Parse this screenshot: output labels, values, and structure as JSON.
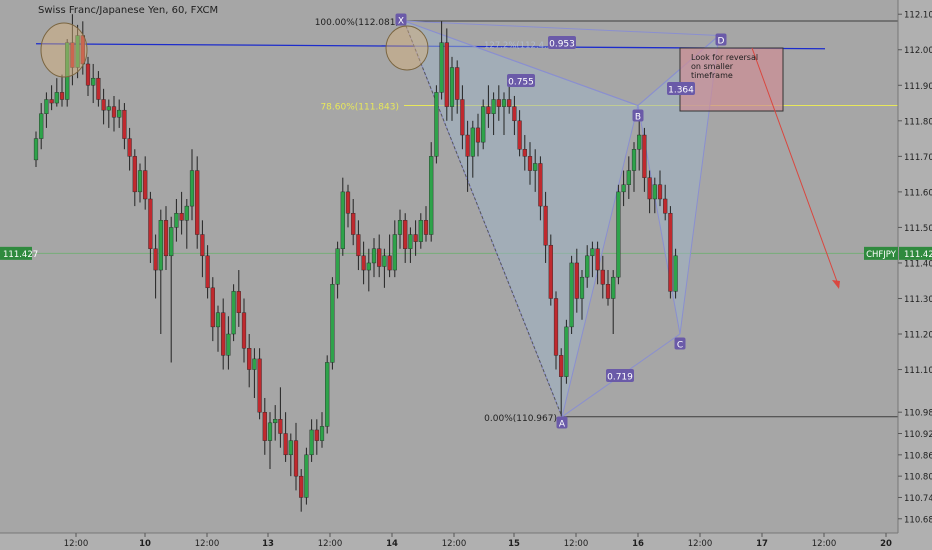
{
  "chart_data": {
    "type": "candlestick",
    "title": "Swiss Franc/Japanese Yen, 60, FXCM",
    "symbol": "CHFJPY",
    "last_price": "111.427",
    "ylim": [
      110.64,
      112.14
    ],
    "y_ticks": [
      "112.100",
      "112.000",
      "111.900",
      "111.800",
      "111.700",
      "111.600",
      "111.500",
      "111.400",
      "111.300",
      "111.200",
      "111.100",
      "110.980",
      "110.920",
      "110.860",
      "110.800",
      "110.740",
      "110.680"
    ],
    "y_tick_values": [
      112.1,
      112.0,
      111.9,
      111.8,
      111.7,
      111.6,
      111.5,
      111.4,
      111.3,
      111.2,
      111.1,
      110.98,
      110.92,
      110.86,
      110.8,
      110.74,
      110.68
    ],
    "x_ticks": [
      "12:00",
      "10",
      "12:00",
      "13",
      "12:00",
      "14",
      "12:00",
      "15",
      "12:00",
      "16",
      "12:00",
      "17",
      "12:00",
      "20"
    ],
    "horizontal_lines": [
      {
        "label": "100.00%(112.081)",
        "value": 112.081,
        "color": "#3d3d3d"
      },
      {
        "label": "78.60%(111.843)",
        "value": 111.843,
        "color": "#e8e85a"
      },
      {
        "label": "0.00%(110.967)",
        "value": 110.967,
        "color": "#3d3d3d"
      },
      {
        "label": "",
        "value": 112.014,
        "color": "#1c2ccc"
      }
    ],
    "pattern": {
      "points": [
        {
          "label": "X",
          "value": 112.081
        },
        {
          "label": "A",
          "value": 110.967
        },
        {
          "label": "B",
          "value": 111.843
        },
        {
          "label": "C",
          "value": 111.2
        },
        {
          "label": "D",
          "value": 112.04
        }
      ],
      "ratios": [
        "0.953",
        "0.755",
        "1.364",
        "0.719"
      ],
      "faded_label": "127.2%(112.4..."
    },
    "annotation": "Look for reversal on smaller timeframe",
    "candles": [
      {
        "o": 111.69,
        "h": 111.77,
        "l": 111.67,
        "c": 111.75
      },
      {
        "o": 111.75,
        "h": 111.85,
        "l": 111.72,
        "c": 111.82
      },
      {
        "o": 111.82,
        "h": 111.88,
        "l": 111.78,
        "c": 111.86
      },
      {
        "o": 111.86,
        "h": 111.9,
        "l": 111.83,
        "c": 111.85
      },
      {
        "o": 111.85,
        "h": 111.92,
        "l": 111.84,
        "c": 111.88
      },
      {
        "o": 111.88,
        "h": 111.93,
        "l": 111.84,
        "c": 111.86
      },
      {
        "o": 111.86,
        "h": 112.03,
        "l": 111.84,
        "c": 112.02
      },
      {
        "o": 112.02,
        "h": 112.1,
        "l": 111.9,
        "c": 111.95
      },
      {
        "o": 111.95,
        "h": 112.07,
        "l": 111.92,
        "c": 112.04
      },
      {
        "o": 112.04,
        "h": 112.08,
        "l": 111.93,
        "c": 111.96
      },
      {
        "o": 111.96,
        "h": 111.98,
        "l": 111.87,
        "c": 111.9
      },
      {
        "o": 111.9,
        "h": 111.96,
        "l": 111.85,
        "c": 111.92
      },
      {
        "o": 111.92,
        "h": 111.94,
        "l": 111.84,
        "c": 111.86
      },
      {
        "o": 111.86,
        "h": 111.89,
        "l": 111.79,
        "c": 111.83
      },
      {
        "o": 111.83,
        "h": 111.86,
        "l": 111.78,
        "c": 111.84
      },
      {
        "o": 111.84,
        "h": 111.87,
        "l": 111.77,
        "c": 111.81
      },
      {
        "o": 111.81,
        "h": 111.86,
        "l": 111.78,
        "c": 111.83
      },
      {
        "o": 111.83,
        "h": 111.85,
        "l": 111.72,
        "c": 111.75
      },
      {
        "o": 111.75,
        "h": 111.78,
        "l": 111.66,
        "c": 111.7
      },
      {
        "o": 111.7,
        "h": 111.72,
        "l": 111.56,
        "c": 111.6
      },
      {
        "o": 111.6,
        "h": 111.68,
        "l": 111.57,
        "c": 111.66
      },
      {
        "o": 111.66,
        "h": 111.7,
        "l": 111.55,
        "c": 111.58
      },
      {
        "o": 111.58,
        "h": 111.6,
        "l": 111.4,
        "c": 111.44
      },
      {
        "o": 111.44,
        "h": 111.48,
        "l": 111.3,
        "c": 111.38
      },
      {
        "o": 111.38,
        "h": 111.55,
        "l": 111.2,
        "c": 111.52
      },
      {
        "o": 111.52,
        "h": 111.56,
        "l": 111.38,
        "c": 111.42
      },
      {
        "o": 111.42,
        "h": 111.53,
        "l": 111.12,
        "c": 111.5
      },
      {
        "o": 111.5,
        "h": 111.58,
        "l": 111.46,
        "c": 111.54
      },
      {
        "o": 111.54,
        "h": 111.6,
        "l": 111.48,
        "c": 111.52
      },
      {
        "o": 111.52,
        "h": 111.58,
        "l": 111.44,
        "c": 111.56
      },
      {
        "o": 111.56,
        "h": 111.72,
        "l": 111.52,
        "c": 111.66
      },
      {
        "o": 111.66,
        "h": 111.7,
        "l": 111.44,
        "c": 111.48
      },
      {
        "o": 111.48,
        "h": 111.52,
        "l": 111.36,
        "c": 111.42
      },
      {
        "o": 111.42,
        "h": 111.45,
        "l": 111.3,
        "c": 111.33
      },
      {
        "o": 111.33,
        "h": 111.36,
        "l": 111.18,
        "c": 111.22
      },
      {
        "o": 111.22,
        "h": 111.28,
        "l": 111.15,
        "c": 111.26
      },
      {
        "o": 111.26,
        "h": 111.3,
        "l": 111.1,
        "c": 111.14
      },
      {
        "o": 111.14,
        "h": 111.25,
        "l": 111.1,
        "c": 111.2
      },
      {
        "o": 111.2,
        "h": 111.34,
        "l": 111.18,
        "c": 111.32
      },
      {
        "o": 111.32,
        "h": 111.38,
        "l": 111.22,
        "c": 111.26
      },
      {
        "o": 111.26,
        "h": 111.3,
        "l": 111.12,
        "c": 111.16
      },
      {
        "o": 111.16,
        "h": 111.2,
        "l": 111.05,
        "c": 111.1
      },
      {
        "o": 111.1,
        "h": 111.16,
        "l": 111.02,
        "c": 111.13
      },
      {
        "o": 111.13,
        "h": 111.16,
        "l": 110.96,
        "c": 110.98
      },
      {
        "o": 110.98,
        "h": 111.02,
        "l": 110.86,
        "c": 110.9
      },
      {
        "o": 110.9,
        "h": 110.98,
        "l": 110.82,
        "c": 110.95
      },
      {
        "o": 110.95,
        "h": 111.0,
        "l": 110.9,
        "c": 110.96
      },
      {
        "o": 110.96,
        "h": 111.05,
        "l": 110.88,
        "c": 110.92
      },
      {
        "o": 110.92,
        "h": 110.98,
        "l": 110.84,
        "c": 110.86
      },
      {
        "o": 110.86,
        "h": 110.92,
        "l": 110.8,
        "c": 110.9
      },
      {
        "o": 110.9,
        "h": 110.95,
        "l": 110.76,
        "c": 110.8
      },
      {
        "o": 110.8,
        "h": 110.82,
        "l": 110.7,
        "c": 110.74
      },
      {
        "o": 110.74,
        "h": 110.88,
        "l": 110.72,
        "c": 110.86
      },
      {
        "o": 110.86,
        "h": 110.96,
        "l": 110.84,
        "c": 110.93
      },
      {
        "o": 110.93,
        "h": 110.96,
        "l": 110.86,
        "c": 110.9
      },
      {
        "o": 110.9,
        "h": 110.98,
        "l": 110.88,
        "c": 110.94
      },
      {
        "o": 110.94,
        "h": 111.14,
        "l": 110.92,
        "c": 111.12
      },
      {
        "o": 111.12,
        "h": 111.36,
        "l": 111.1,
        "c": 111.34
      },
      {
        "o": 111.34,
        "h": 111.46,
        "l": 111.3,
        "c": 111.44
      },
      {
        "o": 111.44,
        "h": 111.64,
        "l": 111.42,
        "c": 111.6
      },
      {
        "o": 111.6,
        "h": 111.62,
        "l": 111.5,
        "c": 111.54
      },
      {
        "o": 111.54,
        "h": 111.58,
        "l": 111.45,
        "c": 111.48
      },
      {
        "o": 111.48,
        "h": 111.52,
        "l": 111.38,
        "c": 111.42
      },
      {
        "o": 111.42,
        "h": 111.46,
        "l": 111.34,
        "c": 111.38
      },
      {
        "o": 111.38,
        "h": 111.44,
        "l": 111.32,
        "c": 111.4
      },
      {
        "o": 111.4,
        "h": 111.47,
        "l": 111.36,
        "c": 111.44
      },
      {
        "o": 111.44,
        "h": 111.48,
        "l": 111.36,
        "c": 111.39
      },
      {
        "o": 111.39,
        "h": 111.44,
        "l": 111.33,
        "c": 111.42
      },
      {
        "o": 111.42,
        "h": 111.48,
        "l": 111.36,
        "c": 111.38
      },
      {
        "o": 111.38,
        "h": 111.52,
        "l": 111.36,
        "c": 111.48
      },
      {
        "o": 111.48,
        "h": 111.55,
        "l": 111.44,
        "c": 111.52
      },
      {
        "o": 111.52,
        "h": 111.54,
        "l": 111.4,
        "c": 111.44
      },
      {
        "o": 111.44,
        "h": 111.5,
        "l": 111.4,
        "c": 111.48
      },
      {
        "o": 111.48,
        "h": 111.52,
        "l": 111.42,
        "c": 111.46
      },
      {
        "o": 111.46,
        "h": 111.54,
        "l": 111.44,
        "c": 111.52
      },
      {
        "o": 111.52,
        "h": 111.56,
        "l": 111.46,
        "c": 111.48
      },
      {
        "o": 111.48,
        "h": 111.74,
        "l": 111.46,
        "c": 111.7
      },
      {
        "o": 111.7,
        "h": 111.9,
        "l": 111.68,
        "c": 111.88
      },
      {
        "o": 111.88,
        "h": 112.08,
        "l": 111.86,
        "c": 112.02
      },
      {
        "o": 112.02,
        "h": 112.06,
        "l": 111.8,
        "c": 111.84
      },
      {
        "o": 111.84,
        "h": 111.98,
        "l": 111.8,
        "c": 111.95
      },
      {
        "o": 111.95,
        "h": 111.97,
        "l": 111.82,
        "c": 111.86
      },
      {
        "o": 111.86,
        "h": 111.9,
        "l": 111.72,
        "c": 111.76
      },
      {
        "o": 111.76,
        "h": 111.8,
        "l": 111.6,
        "c": 111.7
      },
      {
        "o": 111.7,
        "h": 111.8,
        "l": 111.64,
        "c": 111.78
      },
      {
        "o": 111.78,
        "h": 111.82,
        "l": 111.7,
        "c": 111.74
      },
      {
        "o": 111.74,
        "h": 111.86,
        "l": 111.72,
        "c": 111.84
      },
      {
        "o": 111.84,
        "h": 111.9,
        "l": 111.78,
        "c": 111.82
      },
      {
        "o": 111.82,
        "h": 111.88,
        "l": 111.76,
        "c": 111.86
      },
      {
        "o": 111.86,
        "h": 111.9,
        "l": 111.8,
        "c": 111.84
      },
      {
        "o": 111.84,
        "h": 111.88,
        "l": 111.76,
        "c": 111.86
      },
      {
        "o": 111.86,
        "h": 111.92,
        "l": 111.82,
        "c": 111.84
      },
      {
        "o": 111.84,
        "h": 111.87,
        "l": 111.76,
        "c": 111.8
      },
      {
        "o": 111.8,
        "h": 111.83,
        "l": 111.7,
        "c": 111.72
      },
      {
        "o": 111.72,
        "h": 111.76,
        "l": 111.66,
        "c": 111.7
      },
      {
        "o": 111.7,
        "h": 111.74,
        "l": 111.62,
        "c": 111.66
      },
      {
        "o": 111.66,
        "h": 111.72,
        "l": 111.6,
        "c": 111.68
      },
      {
        "o": 111.68,
        "h": 111.7,
        "l": 111.52,
        "c": 111.56
      },
      {
        "o": 111.56,
        "h": 111.6,
        "l": 111.4,
        "c": 111.45
      },
      {
        "o": 111.45,
        "h": 111.48,
        "l": 111.28,
        "c": 111.3
      },
      {
        "o": 111.3,
        "h": 111.32,
        "l": 111.1,
        "c": 111.14
      },
      {
        "o": 111.14,
        "h": 111.16,
        "l": 110.97,
        "c": 111.08
      },
      {
        "o": 111.08,
        "h": 111.24,
        "l": 111.06,
        "c": 111.22
      },
      {
        "o": 111.22,
        "h": 111.42,
        "l": 111.2,
        "c": 111.4
      },
      {
        "o": 111.4,
        "h": 111.44,
        "l": 111.26,
        "c": 111.3
      },
      {
        "o": 111.3,
        "h": 111.38,
        "l": 111.24,
        "c": 111.36
      },
      {
        "o": 111.36,
        "h": 111.45,
        "l": 111.33,
        "c": 111.42
      },
      {
        "o": 111.42,
        "h": 111.46,
        "l": 111.36,
        "c": 111.44
      },
      {
        "o": 111.44,
        "h": 111.46,
        "l": 111.34,
        "c": 111.38
      },
      {
        "o": 111.38,
        "h": 111.42,
        "l": 111.3,
        "c": 111.34
      },
      {
        "o": 111.34,
        "h": 111.38,
        "l": 111.28,
        "c": 111.3
      },
      {
        "o": 111.3,
        "h": 111.38,
        "l": 111.2,
        "c": 111.36
      },
      {
        "o": 111.36,
        "h": 111.62,
        "l": 111.34,
        "c": 111.6
      },
      {
        "o": 111.6,
        "h": 111.66,
        "l": 111.56,
        "c": 111.62
      },
      {
        "o": 111.62,
        "h": 111.7,
        "l": 111.58,
        "c": 111.66
      },
      {
        "o": 111.66,
        "h": 111.74,
        "l": 111.6,
        "c": 111.72
      },
      {
        "o": 111.72,
        "h": 111.82,
        "l": 111.66,
        "c": 111.76
      },
      {
        "o": 111.76,
        "h": 111.78,
        "l": 111.6,
        "c": 111.64
      },
      {
        "o": 111.64,
        "h": 111.66,
        "l": 111.54,
        "c": 111.58
      },
      {
        "o": 111.58,
        "h": 111.64,
        "l": 111.54,
        "c": 111.62
      },
      {
        "o": 111.62,
        "h": 111.66,
        "l": 111.56,
        "c": 111.58
      },
      {
        "o": 111.58,
        "h": 111.62,
        "l": 111.52,
        "c": 111.54
      },
      {
        "o": 111.54,
        "h": 111.56,
        "l": 111.3,
        "c": 111.32
      },
      {
        "o": 111.32,
        "h": 111.44,
        "l": 111.3,
        "c": 111.42
      }
    ]
  }
}
